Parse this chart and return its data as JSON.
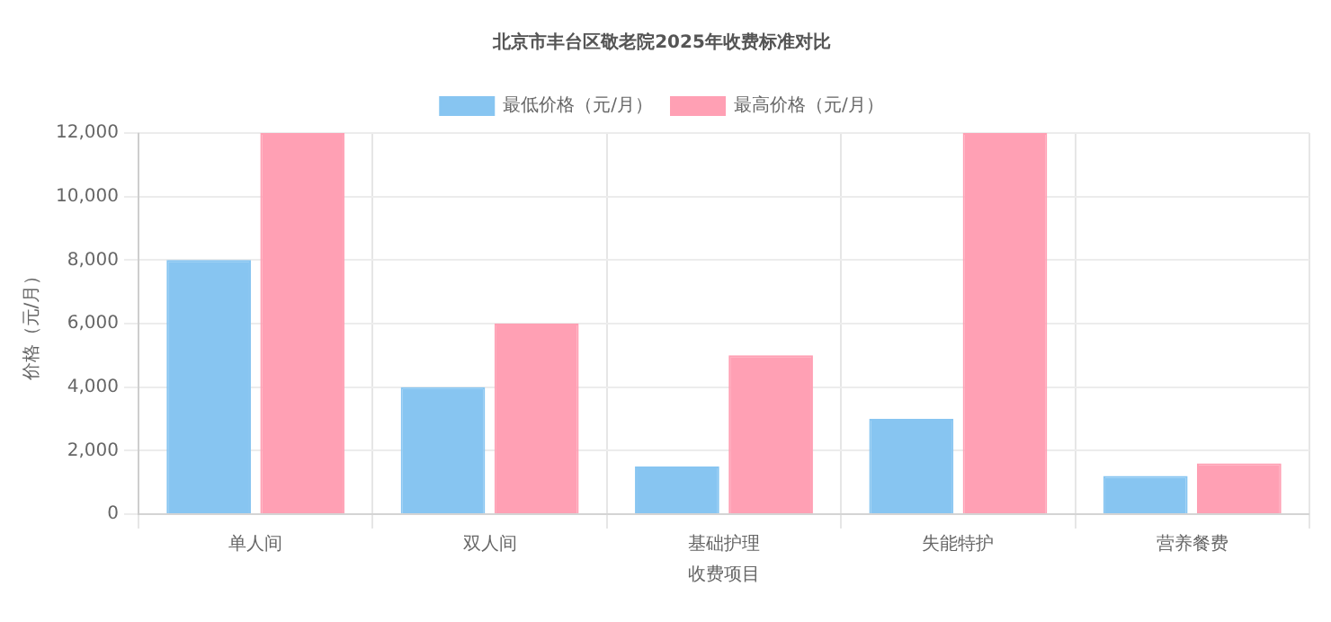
{
  "chart_data": {
    "type": "bar",
    "title": "北京市丰台区敬老院2025年收费标准对比",
    "xlabel": "收费项目",
    "ylabel": "价格（元/月）",
    "categories": [
      "单人间",
      "双人间",
      "基础护理",
      "失能特护",
      "营养餐费"
    ],
    "series": [
      {
        "name": "最低价格（元/月）",
        "color": "#87c5f1",
        "values": [
          8000,
          4000,
          1500,
          3000,
          1200
        ]
      },
      {
        "name": "最高价格（元/月）",
        "color": "#ffa0b4",
        "values": [
          12000,
          6000,
          5000,
          12000,
          1600
        ]
      }
    ],
    "ylim": [
      0,
      12000
    ],
    "yticks": [
      {
        "value": 0,
        "label": "0"
      },
      {
        "value": 2000,
        "label": "2,000"
      },
      {
        "value": 4000,
        "label": "4,000"
      },
      {
        "value": 6000,
        "label": "6,000"
      },
      {
        "value": 8000,
        "label": "8,000"
      },
      {
        "value": 10000,
        "label": "10,000"
      },
      {
        "value": 12000,
        "label": "12,000"
      }
    ],
    "grid": true,
    "legend": "top"
  }
}
